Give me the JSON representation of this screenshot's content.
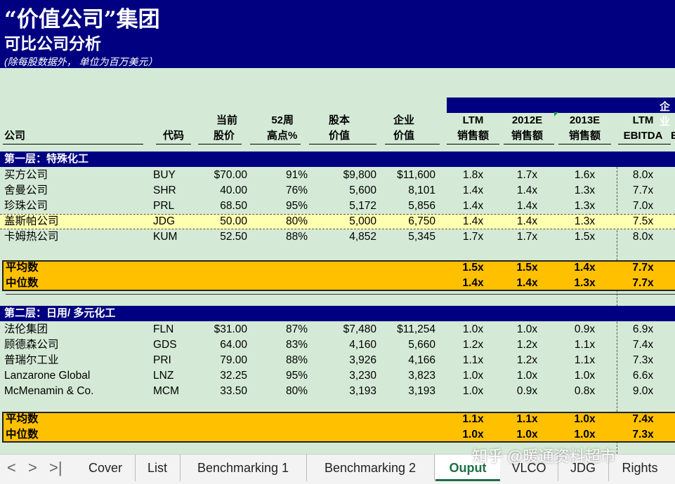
{
  "title": {
    "line1": "“价值公司”集团",
    "line2": "可比公司分析",
    "line3": "(除每股数据外， 单位为百万美元）"
  },
  "band_label": "企业",
  "headers": {
    "company": "公司",
    "code": "代码",
    "price_1": "当前",
    "price_2": "股价",
    "high_1": "52周",
    "high_2": "高点%",
    "equity_1": "股本",
    "equity_2": "价值",
    "ev_1": "企业",
    "ev_2": "价值",
    "ltm_sales_1": "LTM",
    "ltm_sales_2": "销售额",
    "s2012_1": "2012E",
    "s2012_2": "销售额",
    "s2013_1": "2013E",
    "s2013_2": "销售额",
    "ltm_ebitda_1": "LTM",
    "ltm_ebitda_2": "EBITDA",
    "cut": "E"
  },
  "tier1": {
    "label": "第一层：特殊化工",
    "rows": [
      [
        "买方公司",
        "BUY",
        "$70.00",
        "91%",
        "$9,800",
        "$11,600",
        "1.8x",
        "1.7x",
        "1.6x",
        "8.0x"
      ],
      [
        "舍曼公司",
        "SHR",
        "40.00",
        "76%",
        "5,600",
        "8,101",
        "1.4x",
        "1.4x",
        "1.3x",
        "7.7x"
      ],
      [
        "珍珠公司",
        "PRL",
        "68.50",
        "95%",
        "5,172",
        "5,856",
        "1.4x",
        "1.4x",
        "1.3x",
        "7.0x"
      ],
      [
        "盖斯帕公司",
        "JDG",
        "50.00",
        "80%",
        "5,000",
        "6,750",
        "1.4x",
        "1.4x",
        "1.3x",
        "7.5x"
      ],
      [
        "卡姆热公司",
        "KUM",
        "52.50",
        "88%",
        "4,852",
        "5,345",
        "1.7x",
        "1.7x",
        "1.5x",
        "8.0x"
      ]
    ],
    "mean": [
      "平均数",
      "1.5x",
      "1.5x",
      "1.4x",
      "7.7x"
    ],
    "median": [
      "中位数",
      "1.4x",
      "1.4x",
      "1.3x",
      "7.7x"
    ]
  },
  "tier2": {
    "label": "第二层：日用/ 多元化工",
    "rows": [
      [
        "法伦集团",
        "FLN",
        "$31.00",
        "87%",
        "$7,480",
        "$11,254",
        "1.0x",
        "1.0x",
        "0.9x",
        "6.9x"
      ],
      [
        "顾德森公司",
        "GDS",
        "64.00",
        "83%",
        "4,160",
        "5,660",
        "1.2x",
        "1.2x",
        "1.1x",
        "7.4x"
      ],
      [
        "普瑞尔工业",
        "PRI",
        "79.00",
        "88%",
        "3,926",
        "4,166",
        "1.1x",
        "1.2x",
        "1.1x",
        "7.3x"
      ],
      [
        "Lanzarone Global",
        "LNZ",
        "32.25",
        "95%",
        "3,230",
        "3,823",
        "1.0x",
        "1.0x",
        "1.0x",
        "6.6x"
      ],
      [
        "McMenamin & Co.",
        "MCM",
        "33.50",
        "80%",
        "3,193",
        "3,193",
        "1.0x",
        "0.9x",
        "0.8x",
        "9.0x"
      ]
    ],
    "mean": [
      "平均数",
      "1.1x",
      "1.1x",
      "1.0x",
      "7.4x"
    ],
    "median": [
      "中位数",
      "1.0x",
      "1.0x",
      "1.0x",
      "7.3x"
    ]
  },
  "tabs": {
    "nav_first": "<",
    "nav_prev": ">",
    "nav_last": ">|",
    "items": [
      "Cover",
      "List",
      "Benchmarking 1",
      "Benchmarking 2",
      "Ouput",
      "VLCO",
      "JDG",
      "Rights"
    ]
  },
  "watermark": "知乎 @暖通资料超市"
}
